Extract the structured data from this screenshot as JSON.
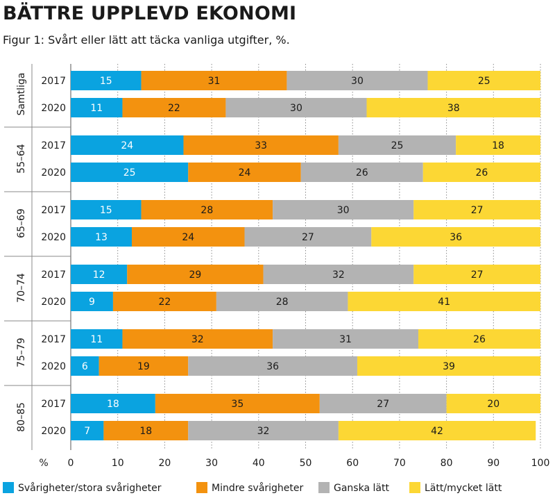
{
  "chart_data": {
    "type": "bar",
    "orientation": "horizontal",
    "stacked": true,
    "title": "BÄTTRE UPPLEVD EKONOMI",
    "subtitle": "Figur 1: Svårt eller lätt att täcka vanliga utgifter, %.",
    "xlabel": "%",
    "xlim": [
      0,
      100
    ],
    "xticks": [
      "0",
      "10",
      "20",
      "30",
      "40",
      "50",
      "60",
      "70",
      "80",
      "90",
      "100"
    ],
    "groups": [
      "Samtliga",
      "55–64",
      "65–69",
      "70–74",
      "75–79",
      "80–85"
    ],
    "years": [
      "2017",
      "2020"
    ],
    "categories": [
      "Samtliga 2017",
      "Samtliga 2020",
      "55–64 2017",
      "55–64 2020",
      "65–69 2017",
      "65–69 2020",
      "70–74 2017",
      "70–74 2020",
      "75–79 2017",
      "75–79 2020",
      "80–85 2017",
      "80–85 2020"
    ],
    "series": [
      {
        "name": "Svårigheter/stora svårigheter",
        "color": "#0aa3e0",
        "values": [
          15,
          11,
          24,
          25,
          15,
          13,
          12,
          9,
          11,
          6,
          18,
          7
        ]
      },
      {
        "name": "Mindre svårigheter",
        "color": "#f3920f",
        "values": [
          31,
          22,
          33,
          24,
          28,
          24,
          29,
          22,
          32,
          19,
          35,
          18
        ]
      },
      {
        "name": "Ganska lätt",
        "color": "#b3b3b3",
        "values": [
          30,
          30,
          25,
          26,
          30,
          27,
          32,
          28,
          31,
          36,
          27,
          32
        ]
      },
      {
        "name": "Lätt/mycket lätt",
        "color": "#fcd734",
        "values": [
          25,
          38,
          18,
          26,
          27,
          36,
          27,
          41,
          26,
          39,
          20,
          42
        ]
      }
    ],
    "grid": true,
    "legend": "bottom"
  }
}
